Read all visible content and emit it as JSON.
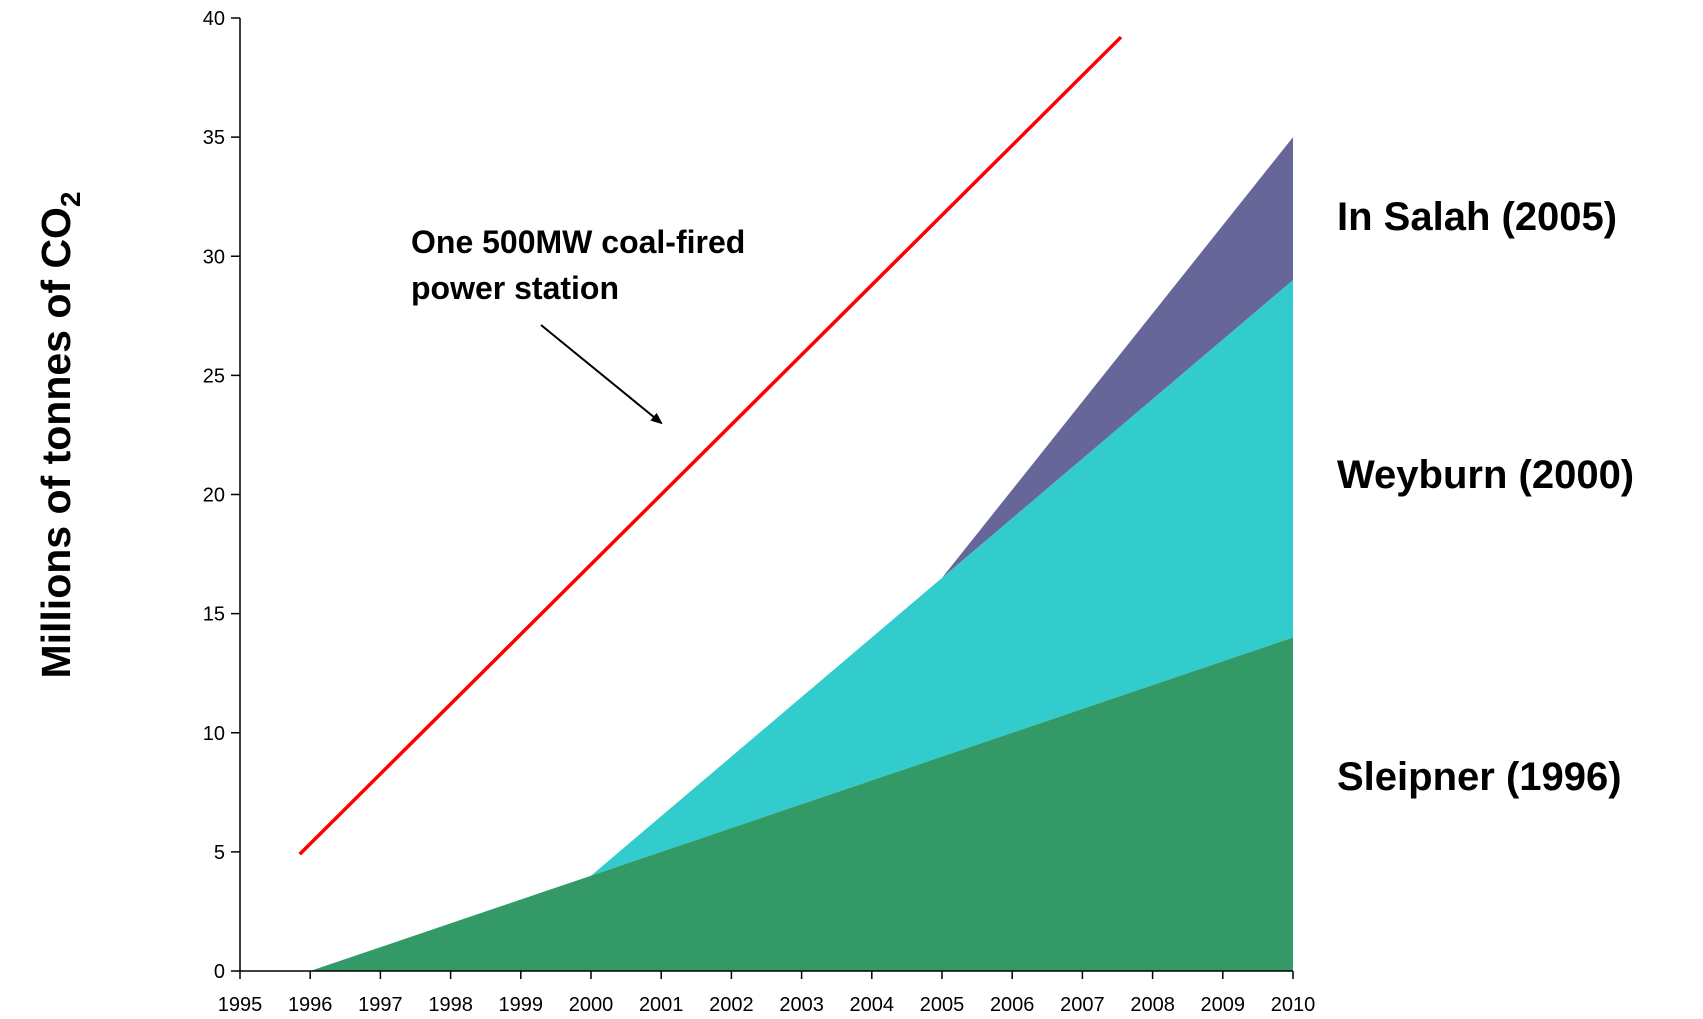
{
  "chart_data": {
    "type": "area",
    "x": [
      1995,
      1996,
      1997,
      1998,
      1999,
      2000,
      2001,
      2002,
      2003,
      2004,
      2005,
      2006,
      2007,
      2008,
      2009,
      2010
    ],
    "xlim": [
      1995,
      2010
    ],
    "ylim": [
      0,
      40
    ],
    "yticks": [
      0,
      5,
      10,
      15,
      20,
      25,
      30,
      35,
      40
    ],
    "ylabel_main": "Millions of tonnes of CO",
    "ylabel_sub": "2",
    "xlabel": "",
    "title": "",
    "stacked": true,
    "series": [
      {
        "name": "Sleipner (1996)",
        "color": "#339966",
        "points": [
          [
            1996,
            0
          ],
          [
            2000,
            4
          ],
          [
            2005,
            9
          ],
          [
            2010,
            14
          ]
        ]
      },
      {
        "name": "Weyburn (2000)",
        "color": "#33CCCC",
        "points": [
          [
            2000,
            0
          ],
          [
            2005,
            7.5
          ],
          [
            2010,
            15
          ]
        ]
      },
      {
        "name": "In Salah (2005)",
        "color": "#666699",
        "points": [
          [
            2005,
            0
          ],
          [
            2010,
            6
          ]
        ]
      }
    ],
    "reference_line": {
      "color": "#FF0000",
      "points": [
        [
          1995.85,
          4.9
        ],
        [
          2007.55,
          39.2
        ]
      ]
    },
    "annotation": {
      "lines": [
        "One 500MW coal-fired",
        "power station"
      ],
      "arrow_to": [
        2001.0,
        23.0
      ]
    }
  }
}
